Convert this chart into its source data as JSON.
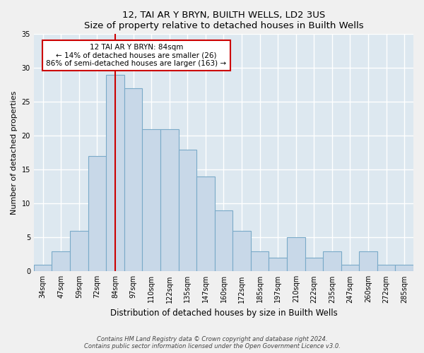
{
  "title": "12, TAI AR Y BRYN, BUILTH WELLS, LD2 3US",
  "subtitle": "Size of property relative to detached houses in Builth Wells",
  "xlabel": "Distribution of detached houses by size in Builth Wells",
  "ylabel": "Number of detached properties",
  "bar_color": "#c8d8e8",
  "bar_edge_color": "#7aaac8",
  "background_color": "#dde8f0",
  "grid_color": "#ffffff",
  "annotation_line_color": "#cc0000",
  "annotation_box_color": "#cc0000",
  "annotation_text": "12 TAI AR Y BRYN: 84sqm\n← 14% of detached houses are smaller (26)\n86% of semi-detached houses are larger (163) →",
  "property_size": 84,
  "categories": [
    "34sqm",
    "47sqm",
    "59sqm",
    "72sqm",
    "84sqm",
    "97sqm",
    "110sqm",
    "122sqm",
    "135sqm",
    "147sqm",
    "160sqm",
    "172sqm",
    "185sqm",
    "197sqm",
    "210sqm",
    "222sqm",
    "235sqm",
    "247sqm",
    "260sqm",
    "272sqm",
    "285sqm"
  ],
  "values": [
    1,
    3,
    6,
    17,
    29,
    27,
    21,
    21,
    18,
    14,
    9,
    6,
    3,
    2,
    5,
    2,
    3,
    1,
    3,
    1,
    1
  ],
  "ylim": [
    0,
    35
  ],
  "yticks": [
    0,
    5,
    10,
    15,
    20,
    25,
    30,
    35
  ],
  "footnote1": "Contains HM Land Registry data © Crown copyright and database right 2024.",
  "footnote2": "Contains public sector information licensed under the Open Government Licence v3.0."
}
